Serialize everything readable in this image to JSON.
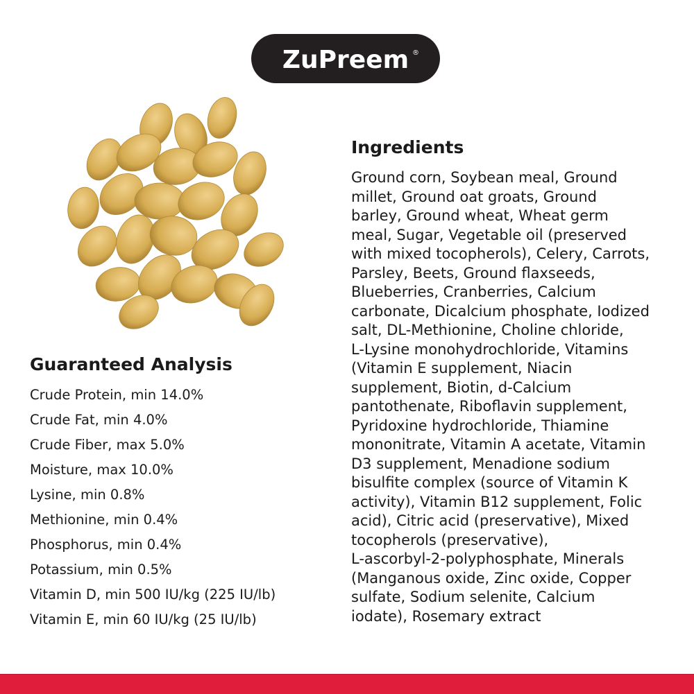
{
  "brand": {
    "name": "ZuPreem",
    "registered": "®"
  },
  "product_image": {
    "description_icon": "kibble-pile"
  },
  "ingredients": {
    "title": "Ingredients",
    "lines": [
      "Ground corn, Soybean meal, Ground",
      "millet, Ground oat groats, Ground",
      "barley, Ground wheat, Wheat germ",
      "meal, Sugar, Vegetable oil (preserved",
      "with mixed tocopherols), Celery, Carrots,",
      "Parsley, Beets, Ground flaxseeds,",
      "Blueberries, Cranberries, Calcium",
      "carbonate, Dicalcium phosphate, Iodized",
      "salt, DL-Methionine, Choline chloride,",
      "L-Lysine monohydrochloride, Vitamins",
      "(Vitamin E supplement, Niacin",
      "supplement, Biotin, d-Calcium",
      "pantothenate, Riboflavin supplement,",
      "Pyridoxine hydrochloride, Thiamine",
      "mononitrate, Vitamin A acetate, Vitamin",
      "D3 supplement, Menadione sodium",
      "bisulfite complex (source of Vitamin K",
      "activity), Vitamin B12 supplement, Folic",
      "acid), Citric acid (preservative), Mixed",
      "tocopherols (preservative),",
      "L-ascorbyl-2-polyphosphate, Minerals",
      "(Manganous oxide, Zinc oxide, Copper",
      "sulfate, Sodium selenite, Calcium",
      "iodate), Rosemary extract"
    ]
  },
  "analysis": {
    "title": "Guaranteed Analysis",
    "items": [
      "Crude Protein, min 14.0%",
      "Crude Fat, min 4.0%",
      "Crude Fiber, max 5.0%",
      "Moisture, max 10.0%",
      "Lysine, min 0.8%",
      "Methionine, min 0.4%",
      "Phosphorus, min 0.4%",
      "Potassium, min 0.5%",
      "Vitamin D, min 500 IU/kg (225 IU/lb)",
      "Vitamin E, min 60 IU/kg (25 IU/lb)"
    ]
  },
  "colors": {
    "logo_bg": "#231f20",
    "accent_bar": "#e01e3c",
    "kibble": "#d9b25a"
  }
}
